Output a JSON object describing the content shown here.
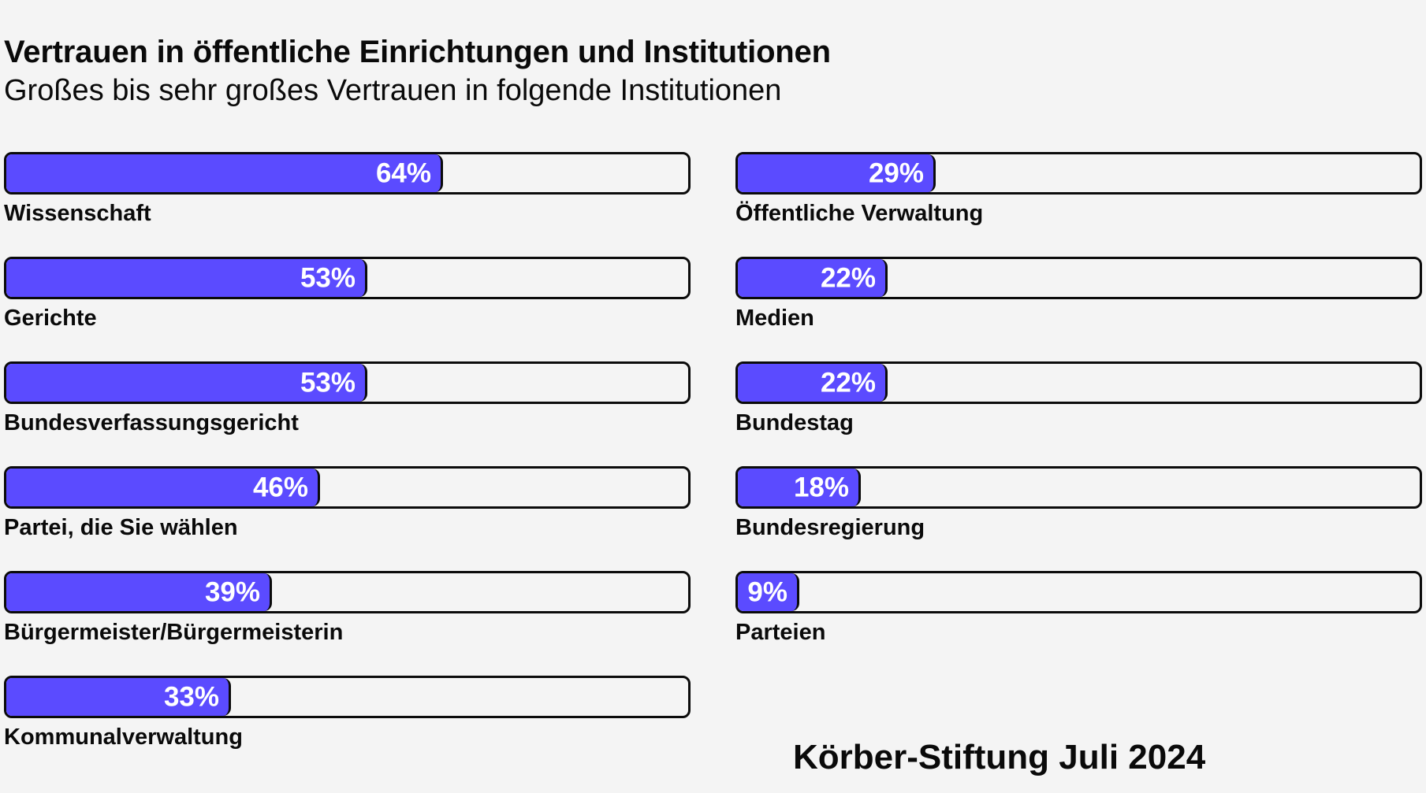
{
  "chart_data": {
    "type": "bar",
    "orientation": "horizontal",
    "title": "Vertrauen in öffentliche Einrichtungen und Institutionen",
    "subtitle": "Großes bis sehr großes Vertrauen in folgende Institutionen",
    "xlim": [
      0,
      100
    ],
    "grid": false,
    "legend": "none",
    "colors": {
      "bar_fill": "#5b4bff",
      "bar_outline": "#0b0b0b",
      "background": "#f4f4f4",
      "value_text": "#ffffff"
    },
    "categories": [
      "Wissenschaft",
      "Gerichte",
      "Bundesverfassungsgericht",
      "Partei, die Sie wählen",
      "Bürgermeister/Bürgermeisterin",
      "Kommunalverwaltung",
      "Öffentliche Verwaltung",
      "Medien",
      "Bundestag",
      "Bundesregierung",
      "Parteien"
    ],
    "values": [
      64,
      53,
      53,
      46,
      39,
      33,
      29,
      22,
      22,
      18,
      9
    ],
    "value_labels": [
      "64%",
      "53%",
      "53%",
      "46%",
      "39%",
      "33%",
      "29%",
      "22%",
      "22%",
      "18%",
      "9%"
    ],
    "source": "Körber-Stiftung Juli 2024"
  }
}
